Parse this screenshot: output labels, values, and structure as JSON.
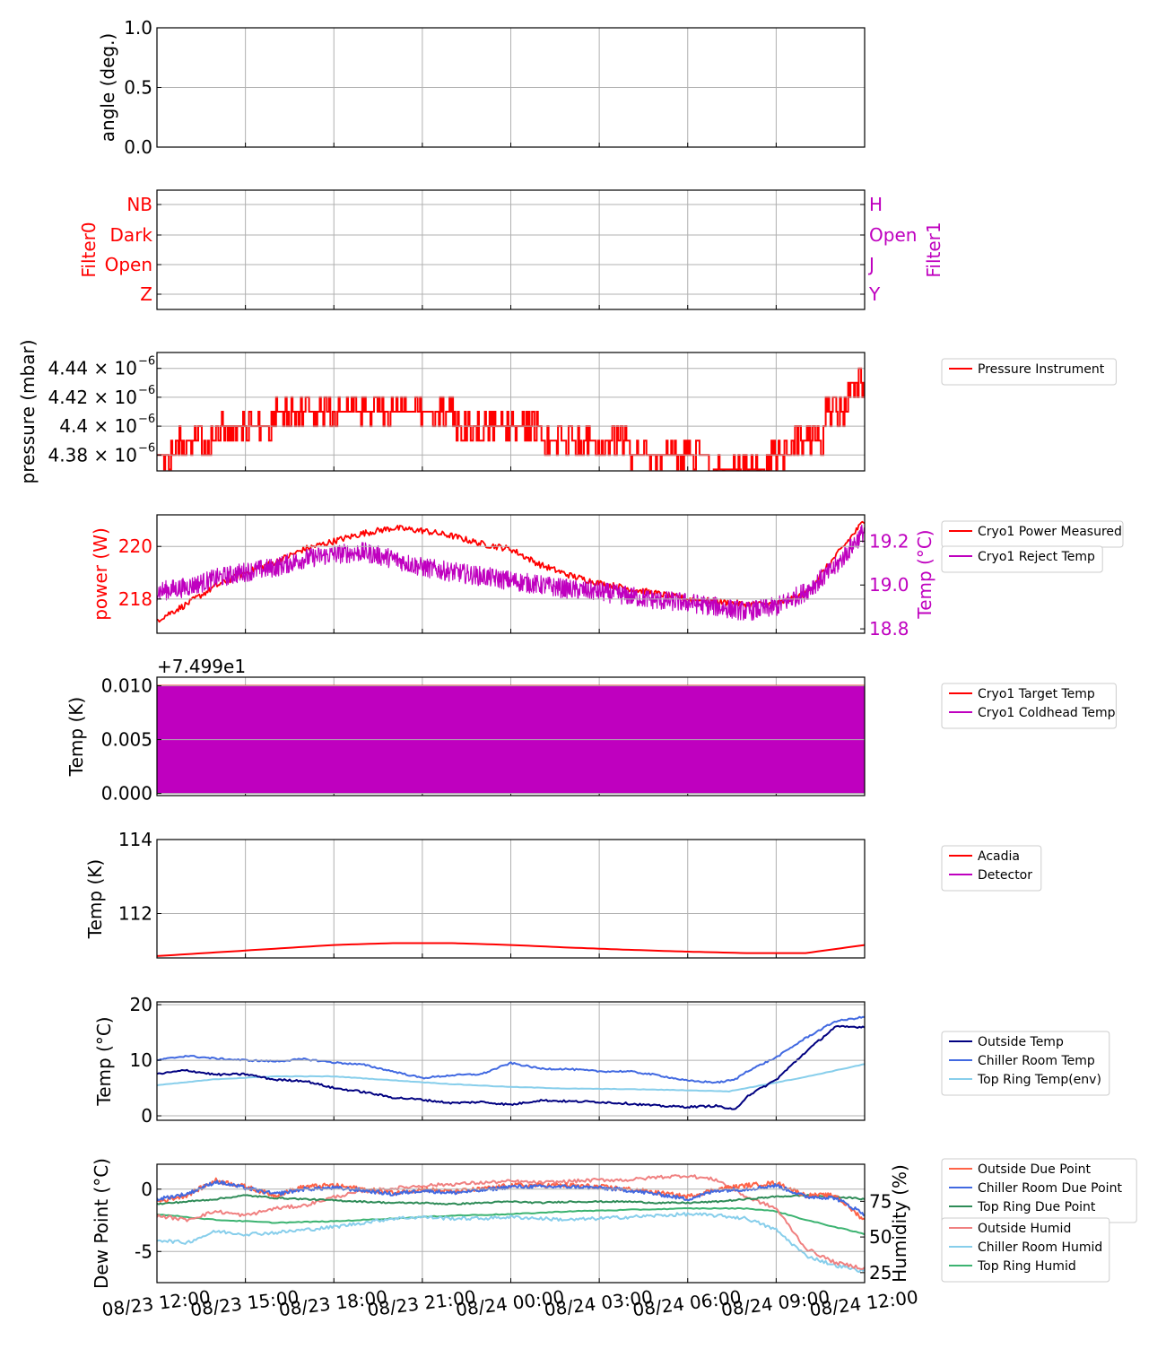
{
  "x_ticks": [
    "08/23 12:00",
    "08/23 15:00",
    "08/23 18:00",
    "08/23 21:00",
    "08/24 00:00",
    "08/24 03:00",
    "08/24 06:00",
    "08/24 09:00",
    "08/24 12:00"
  ],
  "colors": {
    "red": "#ff0000",
    "magenta": "#bf00bf",
    "navy": "#000080",
    "royalblue": "#4169e1",
    "skyblue": "#87ceeb",
    "tomato": "#ff6347",
    "seagreen": "#2e8b57",
    "lightcoral": "#f08080",
    "mediumseagreen": "#3cb371",
    "grid": "#b0b0b0"
  },
  "chart_data": [
    {
      "id": "angle",
      "type": "line",
      "ylabel": "angle (deg.)",
      "ylim": [
        0,
        1
      ],
      "yticks": [
        "0.0",
        "0.5",
        "1.0"
      ],
      "grid": true,
      "series": []
    },
    {
      "id": "filter",
      "type": "line",
      "ylabel": "Filter0",
      "ylabel_right": "Filter1",
      "yticks": [
        "Z",
        "Open",
        "Dark",
        "NB"
      ],
      "yticks_right": [
        "Y",
        "J",
        "Open",
        "H"
      ],
      "grid": true,
      "series": []
    },
    {
      "id": "pressure",
      "type": "line",
      "ylabel": "pressure (mbar)",
      "ylim": [
        4.369e-06,
        4.451e-06
      ],
      "yticks": [
        {
          "mant": "4.38",
          "v": 4.38e-06
        },
        {
          "mant": "4.4",
          "v": 4.4e-06
        },
        {
          "mant": "4.42",
          "v": 4.42e-06
        },
        {
          "mant": "4.44",
          "v": 4.44e-06
        }
      ],
      "grid": true,
      "legend": "right",
      "series": [
        {
          "name": "Pressure Instrument",
          "color": "red",
          "levels_x": [
            0,
            0.33,
            1.0,
            2.0,
            3.5,
            5.0,
            6.5,
            8.0,
            9.3,
            10.4,
            10.75,
            11.3,
            11.7,
            12.0
          ],
          "levels_y": [
            4.38e-06,
            4.39e-06,
            4.4e-06,
            4.41e-06,
            4.41e-06,
            4.4e-06,
            4.39e-06,
            4.38e-06,
            4.37e-06,
            4.38e-06,
            4.39e-06,
            4.41e-06,
            4.43e-06,
            4.45e-06
          ]
        }
      ]
    },
    {
      "id": "cryo_power",
      "type": "line",
      "ylabel": "power (W)",
      "ylabel_right": "Temp (°C)",
      "ylim": [
        216.7,
        221.2
      ],
      "ylim_right": [
        18.78,
        19.32
      ],
      "yticks": [
        "218",
        "220"
      ],
      "yticks_right": [
        "18.8",
        "19.0",
        "19.2"
      ],
      "grid": true,
      "legend": "right",
      "series": [
        {
          "name": "Cryo1 Power Measured",
          "color": "red",
          "axis": "left",
          "x": [
            0,
            0.5,
            1.0,
            1.5,
            2.0,
            2.5,
            3.0,
            3.5,
            4.0,
            4.5,
            5.0,
            5.5,
            6.0,
            6.5,
            7.0,
            7.5,
            8.0,
            8.5,
            9.0,
            9.5,
            10.0,
            10.5,
            11.0,
            11.5,
            12.0
          ],
          "y": [
            217.2,
            217.8,
            218.5,
            219.0,
            219.4,
            219.9,
            220.2,
            220.5,
            220.7,
            220.6,
            220.4,
            220.1,
            219.9,
            219.3,
            218.9,
            218.6,
            218.4,
            218.2,
            218.0,
            217.9,
            217.8,
            217.8,
            218.2,
            219.6,
            221.0
          ]
        },
        {
          "name": "Cryo1 Reject Temp",
          "color": "magenta",
          "axis": "right",
          "x": [
            0,
            0.5,
            1.0,
            1.5,
            2.0,
            2.5,
            3.0,
            3.5,
            4.0,
            4.5,
            5.0,
            5.5,
            6.0,
            6.5,
            7.0,
            7.5,
            8.0,
            8.5,
            9.0,
            9.5,
            10.0,
            10.5,
            11.0,
            11.5,
            12.0
          ],
          "y": [
            18.97,
            18.99,
            19.03,
            19.06,
            19.08,
            19.12,
            19.14,
            19.15,
            19.12,
            19.08,
            19.06,
            19.04,
            19.02,
            19.0,
            18.98,
            18.97,
            18.95,
            18.93,
            18.92,
            18.9,
            18.88,
            18.9,
            18.97,
            19.08,
            19.25
          ]
        }
      ]
    },
    {
      "id": "cryo_temp",
      "type": "line",
      "ylabel": "Temp (K)",
      "offset_text": "+7.499e1",
      "ylim": [
        -0.0002,
        0.0108
      ],
      "yticks": [
        "0.000",
        "0.005",
        "0.010"
      ],
      "grid": true,
      "legend": "right",
      "series": [
        {
          "name": "Cryo1 Target Temp",
          "color": "red",
          "x": [
            0,
            12
          ],
          "y": [
            0.01,
            0.01
          ]
        },
        {
          "name": "Cryo1 Coldhead Temp",
          "color": "magenta",
          "fill_between": [
            0.0,
            0.01
          ]
        }
      ]
    },
    {
      "id": "acadia",
      "type": "line",
      "ylabel": "Temp (K)",
      "ylim": [
        110.8,
        114.0
      ],
      "yticks": [
        "112",
        "114"
      ],
      "grid": true,
      "legend": "right",
      "series": [
        {
          "name": "Acadia",
          "color": "red",
          "x": [
            0,
            1,
            2,
            3,
            4,
            5,
            6,
            7,
            8,
            9,
            10,
            11,
            12
          ],
          "y": [
            110.85,
            110.95,
            111.05,
            111.15,
            111.2,
            111.2,
            111.15,
            111.08,
            111.02,
            110.97,
            110.93,
            110.93,
            111.15
          ]
        },
        {
          "name": "Detector",
          "color": "magenta",
          "x": [],
          "y": []
        }
      ]
    },
    {
      "id": "outside",
      "type": "line",
      "ylabel": "Temp (°C)",
      "ylim": [
        -0.8,
        20.5
      ],
      "yticks": [
        "0",
        "10",
        "20"
      ],
      "grid": true,
      "legend": "right",
      "series": [
        {
          "name": "Outside Temp",
          "color": "navy",
          "x": [
            0,
            0.5,
            1.0,
            1.5,
            2.0,
            2.5,
            3.0,
            3.5,
            4.0,
            4.5,
            5.0,
            5.5,
            6.0,
            6.5,
            7.0,
            7.5,
            8.0,
            8.5,
            9.0,
            9.5,
            9.8,
            10.0,
            10.5,
            11.0,
            11.5,
            12.0
          ],
          "y": [
            7.5,
            8.2,
            7.4,
            7.5,
            6.5,
            6.3,
            5.0,
            4.3,
            3.3,
            2.9,
            2.3,
            2.5,
            2.0,
            2.8,
            2.6,
            2.5,
            2.2,
            1.8,
            1.6,
            1.8,
            1.0,
            3.5,
            6.5,
            11.5,
            16.0,
            16.0
          ]
        },
        {
          "name": "Chiller Room Temp",
          "color": "royalblue",
          "x": [
            0,
            0.5,
            1.0,
            1.5,
            2.0,
            2.5,
            3.0,
            3.5,
            4.0,
            4.5,
            5.0,
            5.5,
            6.0,
            6.5,
            7.0,
            7.5,
            8.0,
            8.5,
            9.0,
            9.5,
            9.8,
            10.0,
            10.5,
            11.0,
            11.5,
            12.0
          ],
          "y": [
            10.0,
            10.8,
            10.3,
            10.0,
            9.8,
            10.2,
            9.6,
            9.2,
            8.0,
            6.8,
            7.3,
            7.5,
            9.5,
            8.5,
            8.4,
            8.0,
            8.0,
            7.3,
            6.3,
            6.0,
            6.5,
            8.0,
            10.5,
            14.0,
            17.0,
            17.8
          ]
        },
        {
          "name": "Top Ring Temp(env)",
          "color": "skyblue",
          "x": [
            0,
            1,
            2,
            3,
            4,
            5,
            6,
            7,
            8,
            9,
            9.7,
            10,
            11,
            12
          ],
          "y": [
            5.5,
            6.6,
            7.1,
            7.1,
            6.4,
            5.7,
            5.2,
            4.9,
            4.8,
            4.6,
            4.4,
            5.0,
            7.0,
            9.3
          ]
        }
      ]
    },
    {
      "id": "dewpoint",
      "type": "line",
      "ylabel": "Dew Point (°C)",
      "ylabel_right": "Humidity (%)",
      "ylim": [
        -7.5,
        2.0
      ],
      "ylim_right": [
        18,
        101
      ],
      "yticks": [
        "-5",
        "0"
      ],
      "yticks_right": [
        "25",
        "50",
        "75"
      ],
      "grid": true,
      "legend": "right",
      "series": [
        {
          "name": "Outside Due Point",
          "color": "tomato",
          "axis": "left",
          "x": [
            0,
            0.5,
            1.0,
            1.5,
            2.0,
            2.5,
            3.0,
            3.5,
            4.0,
            4.5,
            5.0,
            5.5,
            6.0,
            6.5,
            7.0,
            7.5,
            8.0,
            8.5,
            9.0,
            9.5,
            10.0,
            10.5,
            11.0,
            11.5,
            12.0
          ],
          "y": [
            -1.0,
            -0.5,
            0.7,
            0.2,
            -0.5,
            0.2,
            0.3,
            0.0,
            -0.3,
            0.0,
            -0.2,
            0.0,
            0.3,
            0.3,
            0.3,
            0.2,
            0.0,
            -0.3,
            -0.6,
            0.0,
            0.3,
            0.5,
            -0.5,
            -0.5,
            -2.5
          ]
        },
        {
          "name": "Chiller Room Due Point",
          "color": "royalblue",
          "axis": "left",
          "x": [
            0,
            0.5,
            1.0,
            1.5,
            2.0,
            2.5,
            3.0,
            3.5,
            4.0,
            4.5,
            5.0,
            5.5,
            6.0,
            6.5,
            7.0,
            7.5,
            8.0,
            8.5,
            9.0,
            9.5,
            10.0,
            10.5,
            11.0,
            11.5,
            12.0
          ],
          "y": [
            -0.8,
            -0.4,
            0.6,
            0.1,
            -0.4,
            0.0,
            0.1,
            -0.1,
            -0.4,
            -0.1,
            -0.3,
            -0.1,
            0.2,
            0.2,
            0.2,
            0.1,
            -0.1,
            -0.4,
            -0.8,
            -0.1,
            0.0,
            0.3,
            -0.6,
            -0.7,
            -2.0
          ]
        },
        {
          "name": "Top Ring Due Point",
          "color": "seagreen",
          "axis": "left",
          "x": [
            0,
            0.5,
            1.0,
            1.5,
            2.0,
            2.5,
            3.0,
            3.5,
            4.0,
            4.5,
            5.0,
            5.5,
            6.0,
            6.5,
            7.0,
            7.5,
            8.0,
            8.5,
            9.0,
            9.5,
            10.0,
            10.5,
            11.0,
            11.5,
            12.0
          ],
          "y": [
            -1.2,
            -1.0,
            -0.8,
            -0.5,
            -0.7,
            -0.8,
            -0.9,
            -1.0,
            -1.1,
            -1.1,
            -1.2,
            -1.1,
            -1.0,
            -1.1,
            -1.0,
            -1.0,
            -1.0,
            -1.1,
            -1.1,
            -1.0,
            -0.8,
            -0.6,
            -0.5,
            -0.6,
            -0.8
          ]
        },
        {
          "name": "Outside Humid",
          "color": "lightcoral",
          "axis": "right",
          "x": [
            0,
            0.5,
            1.0,
            1.5,
            2.0,
            2.5,
            3.0,
            3.5,
            4.0,
            4.5,
            5.0,
            5.5,
            6.0,
            6.5,
            7.0,
            7.5,
            8.0,
            8.5,
            9.0,
            9.5,
            10.0,
            10.5,
            11.0,
            11.5,
            12.0
          ],
          "y": [
            65,
            62,
            68,
            65,
            70,
            72,
            78,
            82,
            84,
            86,
            87,
            88,
            89,
            88,
            89,
            90,
            90,
            92,
            93,
            90,
            78,
            70,
            42,
            32,
            28
          ]
        },
        {
          "name": "Chiller Room Humid",
          "color": "skyblue",
          "axis": "right",
          "x": [
            0,
            0.5,
            1.0,
            1.5,
            2.0,
            2.5,
            3.0,
            3.5,
            4.0,
            4.5,
            5.0,
            5.5,
            6.0,
            6.5,
            7.0,
            7.5,
            8.0,
            8.5,
            9.0,
            9.5,
            10.0,
            10.5,
            11.0,
            11.5,
            12.0
          ],
          "y": [
            48,
            46,
            54,
            52,
            53,
            55,
            57,
            60,
            63,
            64,
            63,
            63,
            64,
            63,
            62,
            63,
            64,
            65,
            66,
            65,
            63,
            55,
            37,
            30,
            26
          ]
        },
        {
          "name": "Top Ring Humid",
          "color": "mediumseagreen",
          "axis": "right",
          "x": [
            0,
            1,
            2,
            3,
            4,
            5,
            6,
            7,
            8,
            9,
            10,
            10.5,
            11,
            11.5,
            12.0
          ],
          "y": [
            66,
            62,
            60,
            61,
            63,
            65,
            66,
            68,
            69,
            70,
            70,
            68,
            62,
            57,
            52
          ]
        }
      ]
    }
  ]
}
